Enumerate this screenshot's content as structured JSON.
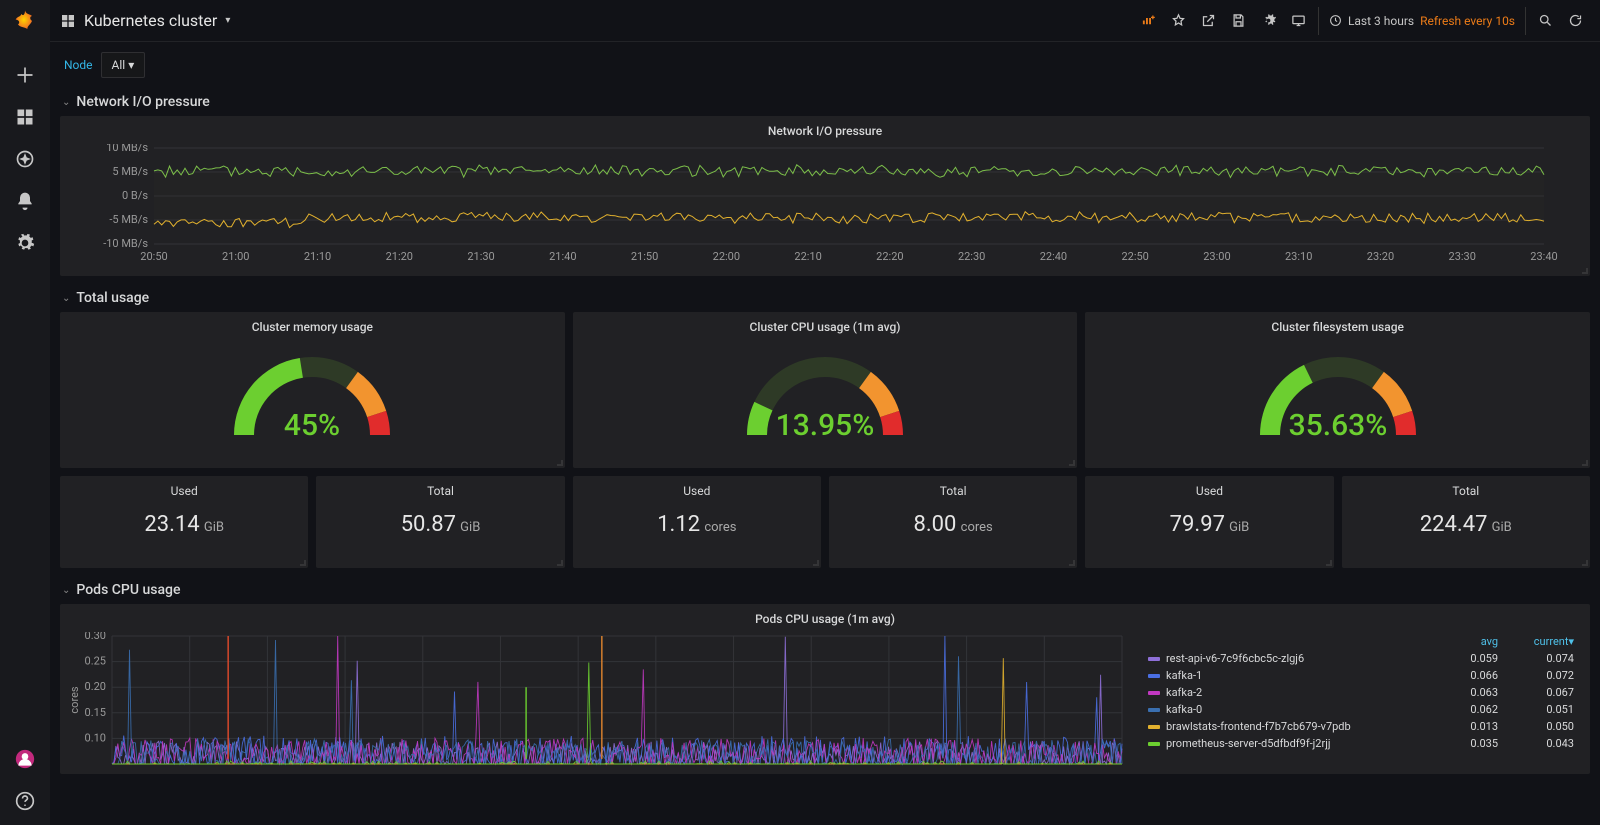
{
  "colors": {
    "bg": "#111217",
    "panel": "#212124",
    "text": "#d8d9da",
    "accent": "#eb7b18",
    "link": "#33b5e5",
    "gauge_green": "#6ccf30",
    "gauge_orange": "#f2942f",
    "gauge_red": "#e12c2c",
    "chart_green": "#7cbf4a",
    "chart_yellow": "#e2b12e"
  },
  "header": {
    "title": "Kubernetes cluster",
    "time_range": "Last 3 hours",
    "refresh": "Refresh every 10s"
  },
  "submenu": {
    "var_label": "Node",
    "var_value": "All"
  },
  "rows": {
    "network": {
      "title": "Network I/O pressure"
    },
    "total": {
      "title": "Total usage"
    },
    "pods_cpu": {
      "title": "Pods CPU usage"
    }
  },
  "network_chart": {
    "title": "Network I/O pressure",
    "y_ticks": [
      "10 MB/s",
      "5 MB/s",
      "0 B/s",
      "-5 MB/s",
      "-10 MB/s"
    ],
    "x_ticks": [
      "20:50",
      "21:00",
      "21:10",
      "21:20",
      "21:30",
      "21:40",
      "21:50",
      "22:00",
      "22:10",
      "22:20",
      "22:30",
      "22:40",
      "22:50",
      "23:00",
      "23:10",
      "23:20",
      "23:30",
      "23:40"
    ],
    "series": [
      {
        "color": "#7cbf4a",
        "base": 5.2,
        "amp": 1.1
      },
      {
        "color": "#e2b12e",
        "base": -4.5,
        "amp": 1.0
      }
    ],
    "ylim": [
      -10,
      10
    ]
  },
  "gauges": [
    {
      "title": "Cluster memory usage",
      "pct": 45,
      "display": "45%"
    },
    {
      "title": "Cluster CPU usage (1m avg)",
      "pct": 13.95,
      "display": "13.95%"
    },
    {
      "title": "Cluster filesystem usage",
      "pct": 35.63,
      "display": "35.63%"
    }
  ],
  "stats": [
    {
      "title": "Used",
      "value": "23.14",
      "unit": " GiB"
    },
    {
      "title": "Total",
      "value": "50.87",
      "unit": " GiB"
    },
    {
      "title": "Used",
      "value": "1.12",
      "unit": " cores"
    },
    {
      "title": "Total",
      "value": "8.00",
      "unit": " cores"
    },
    {
      "title": "Used",
      "value": "79.97",
      "unit": " GiB"
    },
    {
      "title": "Total",
      "value": "224.47",
      "unit": " GiB"
    }
  ],
  "pods_chart": {
    "title": "Pods CPU usage (1m avg)",
    "y_label": "cores",
    "y_ticks": [
      "0.30",
      "0.25",
      "0.20",
      "0.15",
      "0.10"
    ],
    "ylim": [
      0.05,
      0.3
    ],
    "legend_headers": [
      "avg",
      "current▾"
    ],
    "series": [
      {
        "name": "rest-api-v6-7c9f6cbc5c-zlgj6",
        "color": "#8e6fd8",
        "avg": "0.059",
        "current": "0.074"
      },
      {
        "name": "kafka-1",
        "color": "#4a6fe3",
        "avg": "0.066",
        "current": "0.072"
      },
      {
        "name": "kafka-2",
        "color": "#c238c2",
        "avg": "0.063",
        "current": "0.067"
      },
      {
        "name": "kafka-0",
        "color": "#3a6fb0",
        "avg": "0.062",
        "current": "0.051"
      },
      {
        "name": "brawlstats-frontend-f7b7cb679-v7pdb",
        "color": "#e2b12e",
        "avg": "0.013",
        "current": "0.050"
      },
      {
        "name": "prometheus-server-d5dfbdf9f-j2rjj",
        "color": "#6ccf30",
        "avg": "0.035",
        "current": "0.043"
      }
    ]
  }
}
